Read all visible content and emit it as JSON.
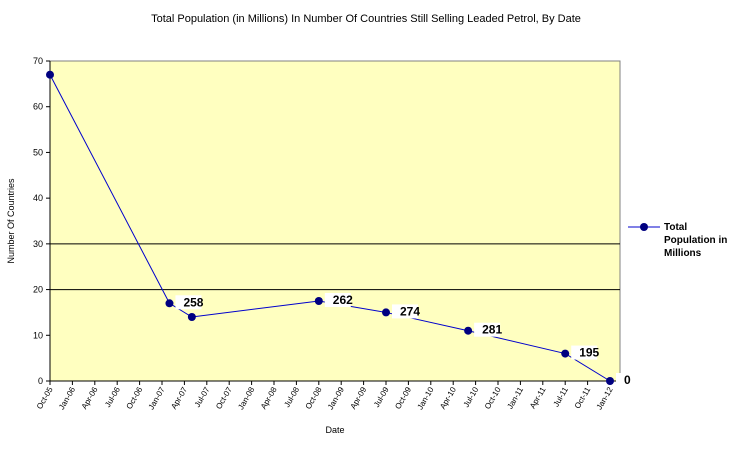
{
  "chart_data": {
    "type": "line",
    "title": "Total Population (in Millions) In Number Of Countries Still Selling Leaded Petrol, By Date",
    "x_label": "Date",
    "y_label": "Number Of Countries",
    "x": [
      "Oct-05",
      "Feb-07",
      "May-07",
      "Oct-08",
      "Jul-09",
      "Jun-10",
      "Jul-11",
      "Jan-12"
    ],
    "series": [
      {
        "name": "Total Population in Millions",
        "color": "#0000cc",
        "marker_color": "#000080",
        "values": [
          67,
          17,
          14,
          17.5,
          15,
          11,
          6,
          0
        ],
        "annotations": [
          null,
          258,
          null,
          262,
          274,
          281,
          195,
          0
        ]
      }
    ],
    "xlim": [
      "Oct-05",
      "Jan-12"
    ],
    "xticks": [
      "Oct-05",
      "Jan-06",
      "Apr-06",
      "Jul-06",
      "Oct-06",
      "Jan-07",
      "Apr-07",
      "Jul-07",
      "Oct-07",
      "Jan-08",
      "Apr-08",
      "Jul-08",
      "Oct-08",
      "Jan-09",
      "Apr-09",
      "Jul-09",
      "Oct-09",
      "Jan-10",
      "Apr-10",
      "Jul-10",
      "Oct-10",
      "Jan-11",
      "Apr-11",
      "Jul-11",
      "Oct-11",
      "Jan-12"
    ],
    "ylim": [
      0,
      70
    ],
    "yticks": [
      0,
      10,
      20,
      30,
      40,
      50,
      60,
      70
    ],
    "reference_lines": [
      20,
      30
    ],
    "plot_background": "#ffffc0",
    "legend": "right"
  }
}
